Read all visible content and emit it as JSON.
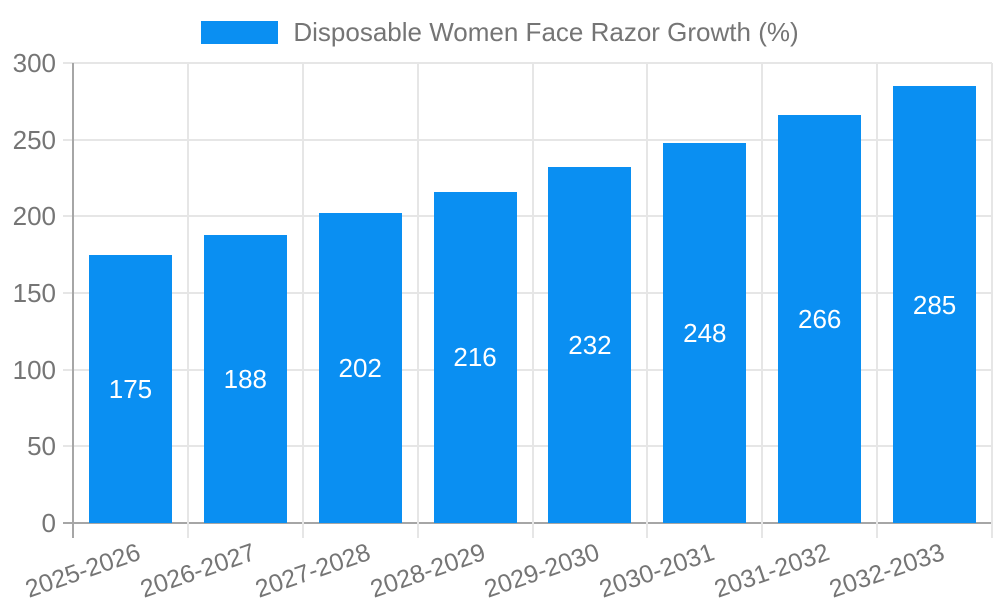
{
  "chart_data": {
    "type": "bar",
    "title": "",
    "series_name": "Disposable Women Face Razor Growth (%)",
    "categories": [
      "2025-2026",
      "2026-2027",
      "2027-2028",
      "2028-2029",
      "2029-2030",
      "2030-2031",
      "2031-2032",
      "2032-2033"
    ],
    "values": [
      175,
      188,
      202,
      216,
      232,
      248,
      266,
      285
    ],
    "ylim": [
      0,
      300
    ],
    "ytick_step": 50,
    "yticks": [
      0,
      50,
      100,
      150,
      200,
      250,
      300
    ],
    "grid": true,
    "legend_position": "top-center",
    "x_label_rotation_deg": -19,
    "bar_labels_inside": true,
    "colors": {
      "bar": "#0a8ff2",
      "grid": "#e6e6e6",
      "axis": "#a6a6a6",
      "tick_text": "#757575",
      "bar_label": "#ffffff",
      "background": "#ffffff"
    }
  }
}
